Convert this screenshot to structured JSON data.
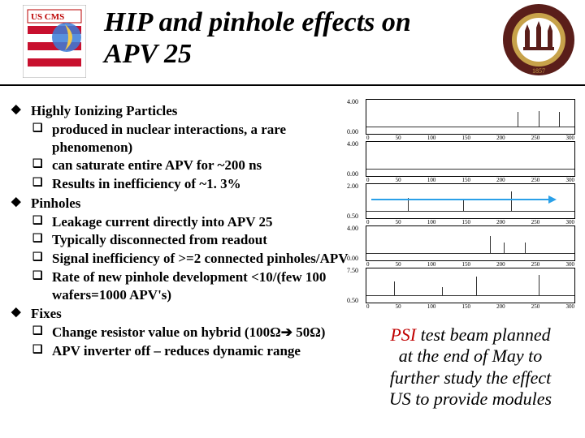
{
  "title_line1": "HIP and pinhole effects on",
  "title_line2": "APV 25",
  "logo_left": {
    "text": "US CMS",
    "bg": "#ffffff"
  },
  "logo_right": {
    "year": "1857",
    "ring": "#5a1e1a",
    "seal": "#c7a24a"
  },
  "bullets": {
    "items": [
      {
        "label": "Highly Ionizing Particles",
        "children": [
          "produced in nuclear interactions, a rare phenomenon)",
          "can saturate entire APV for ~200 ns",
          "Results in inefficiency of ~1. 3%"
        ]
      },
      {
        "label": "Pinholes",
        "children": [
          "Leakage current directly into APV 25",
          "Typically disconnected from readout",
          "Signal inefficiency of >=2 connected pinholes/APV",
          "Rate of new pinhole development <10/(few 100 wafers=1000 APV's)"
        ]
      },
      {
        "label": "Fixes",
        "children": [
          "Change resistor value on hybrid (100Ω➔ 50Ω)",
          "APV inverter off – reduces dynamic range"
        ]
      }
    ]
  },
  "plots": {
    "count": 5,
    "y_top": "4.00",
    "y_bot": "0.00",
    "y_bot_alt": "0.50",
    "y_top3": "2.00",
    "y_top5": "7.50",
    "x_ticks": [
      "0",
      "50",
      "100",
      "150",
      "200",
      "250",
      "300"
    ],
    "spike_positions": [
      [
        220,
        250,
        280
      ],
      [],
      [
        60,
        140,
        210
      ],
      [
        180,
        200,
        230
      ],
      [
        40,
        110,
        160,
        250
      ]
    ],
    "arrow_on_panel": 2,
    "arrow_color": "#2aa0e8",
    "axis_color": "#000000",
    "trace_color": "#333333"
  },
  "caption": {
    "psi": "PSI",
    "rest1": " test beam planned",
    "line2": "at the end of May to",
    "line3": "further study the effect",
    "line4": "US to provide modules"
  }
}
